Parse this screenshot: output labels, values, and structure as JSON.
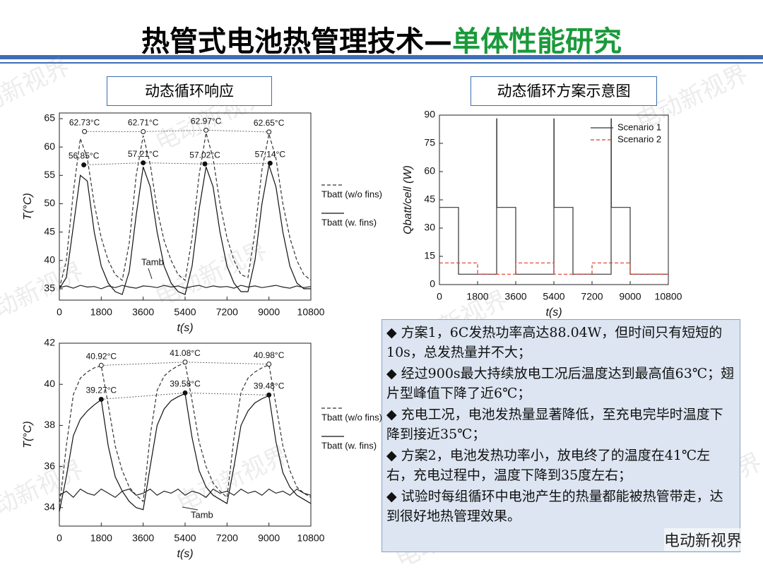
{
  "header": {
    "title": "热管式电池热管理技术—",
    "subtitle": "单体性能研究"
  },
  "labels": {
    "left": "动态循环响应",
    "right": "动态循环方案示意图"
  },
  "watermark": "电动新视界",
  "notes": [
    "◆ 方案1，6C发热功率高达88.04W，但时间只有短短的10s，总发热量并不大；",
    "◆ 经过900s最大持续放电工况后温度达到最高值63℃；翅片型峰值下降了近6℃；",
    "◆ 充电工况，电池发热量显著降低，至充电完毕时温度下降到接近35℃；",
    "◆ 方案2，电池发热功率小，放电终了的温度在41℃左右，充电过程中，温度下降到35度左右；",
    "◆ 试验时每组循环中电池产生的热量都能被热管带走，达到很好地热管理效果。"
  ],
  "chart_data": [
    {
      "type": "line",
      "xlabel": "t(s)",
      "ylabel": "T(°C)",
      "xlim": [
        0,
        10800
      ],
      "xticks": [
        0,
        1800,
        3600,
        5400,
        7200,
        9000,
        10800
      ],
      "ylim": [
        33,
        66
      ],
      "yticks": [
        35,
        40,
        45,
        50,
        55,
        60,
        65
      ],
      "legend": "right",
      "x": [
        0,
        300,
        600,
        900,
        1200,
        1500,
        1800,
        2100,
        2400,
        2700,
        3000,
        3300,
        3600,
        3900,
        4200,
        4500,
        4800,
        5100,
        5400,
        5700,
        6000,
        6300,
        6600,
        6900,
        7200,
        7500,
        7800,
        8100,
        8400,
        8700,
        9000,
        9300,
        9600,
        9900,
        10200,
        10500,
        10800
      ],
      "series": [
        {
          "name": "Tbatt (w/o fins)",
          "color": "#333333",
          "line_style": "dashed",
          "in_legend": true,
          "values": [
            35,
            40,
            52,
            61.5,
            58,
            50,
            44,
            40,
            37.5,
            36.5,
            43,
            55,
            62,
            57,
            49,
            43.5,
            40,
            37.5,
            36.5,
            44,
            55,
            62.5,
            58,
            50,
            44,
            40,
            37.5,
            37,
            45,
            56,
            62.3,
            58,
            50,
            44,
            40,
            37.5,
            36.5
          ]
        },
        {
          "name": "Tbatt (w. fins)",
          "color": "#111111",
          "line_style": "solid",
          "in_legend": true,
          "values": [
            35,
            37,
            46,
            55,
            54,
            45,
            39,
            36,
            34.5,
            34,
            38,
            48,
            56.5,
            53,
            45,
            39,
            36,
            34.5,
            34,
            39,
            49,
            56.5,
            53,
            45,
            39,
            36,
            34.5,
            34.5,
            40,
            50,
            56.8,
            53,
            45,
            39,
            36,
            35,
            35
          ]
        },
        {
          "name": "Tamb",
          "color": "#222222",
          "line_style": "solid",
          "in_legend": false,
          "values": [
            35.2,
            35.5,
            35.1,
            35.6,
            35.3,
            35.4,
            35.0,
            35.5,
            35.2,
            35.6,
            35.3,
            35.1,
            35.5,
            35.4,
            35.2,
            35.6,
            35.3,
            35.5,
            35.1,
            35.4,
            35.6,
            35.2,
            35.5,
            35.3,
            35.4,
            35.1,
            35.6,
            35.3,
            35.5,
            35.2,
            35.4,
            35.6,
            35.3,
            35.1,
            35.5,
            35.2,
            35.4
          ]
        }
      ],
      "annotations": [
        {
          "text": "62.73°C",
          "x": 1080,
          "y": 62.73,
          "marker": "open"
        },
        {
          "text": "62.71°C",
          "x": 3600,
          "y": 62.71,
          "marker": "open"
        },
        {
          "text": "62.97°C",
          "x": 6300,
          "y": 62.97,
          "marker": "open"
        },
        {
          "text": "62.65°C",
          "x": 9000,
          "y": 62.65,
          "marker": "open"
        },
        {
          "text": "56.85°C",
          "x": 1050,
          "y": 56.85,
          "marker": "filled"
        },
        {
          "text": "57.21°C",
          "x": 3600,
          "y": 57.21,
          "marker": "filled"
        },
        {
          "text": "57.02°C",
          "x": 6250,
          "y": 57.02,
          "marker": "filled"
        },
        {
          "text": "57.14°C",
          "x": 9050,
          "y": 57.14,
          "marker": "filled"
        }
      ]
    },
    {
      "type": "line",
      "xlabel": "t(s)",
      "ylabel": "T(°C)",
      "xlim": [
        0,
        10800
      ],
      "xticks": [
        0,
        1800,
        3600,
        5400,
        7200,
        9000,
        10800
      ],
      "ylim": [
        33.1,
        42
      ],
      "yticks": [
        34,
        36,
        38,
        40,
        42
      ],
      "legend": "right",
      "x": [
        0,
        300,
        600,
        900,
        1200,
        1500,
        1800,
        2100,
        2400,
        2700,
        3000,
        3300,
        3600,
        3900,
        4200,
        4500,
        4800,
        5100,
        5400,
        5700,
        6000,
        6300,
        6600,
        6900,
        7200,
        7500,
        7800,
        8100,
        8400,
        8700,
        9000,
        9300,
        9600,
        9900,
        10200,
        10500,
        10800
      ],
      "series": [
        {
          "name": "Tbatt (w/o fins)",
          "color": "#333333",
          "line_style": "dashed",
          "in_legend": true,
          "values": [
            34,
            37,
            39.5,
            40.3,
            40.6,
            40.8,
            40.9,
            39,
            37,
            35.8,
            35,
            34.6,
            34.3,
            37.5,
            39.7,
            40.4,
            40.7,
            40.9,
            41.05,
            39.2,
            37.2,
            36,
            35.2,
            34.8,
            34.5,
            37.4,
            39.6,
            40.3,
            40.6,
            40.8,
            40.95,
            39,
            37,
            35.8,
            35,
            34.7,
            34.5
          ]
        },
        {
          "name": "Tbatt (w. fins)",
          "color": "#111111",
          "line_style": "solid",
          "in_legend": true,
          "values": [
            33.8,
            35.5,
            37.5,
            38.3,
            38.7,
            39,
            39.25,
            37,
            35.5,
            34.8,
            34.3,
            34,
            33.9,
            36,
            38,
            38.8,
            39.2,
            39.4,
            39.55,
            37.4,
            35.8,
            35,
            34.6,
            34.4,
            34.2,
            36,
            38,
            38.7,
            39.1,
            39.3,
            39.45,
            37.2,
            35.7,
            35,
            34.6,
            34.4,
            34.2
          ]
        },
        {
          "name": "Tamb",
          "color": "#222222",
          "line_style": "solid",
          "in_legend": false,
          "values": [
            34.6,
            34.8,
            34.5,
            34.9,
            34.7,
            34.6,
            34.9,
            34.7,
            34.5,
            34.8,
            34.9,
            34.6,
            34.7,
            34.9,
            34.6,
            34.8,
            34.7,
            34.9,
            34.6,
            34.8,
            34.7,
            34.5,
            34.9,
            34.7,
            34.8,
            34.6,
            34.9,
            34.7,
            34.8,
            34.6,
            34.9,
            34.7,
            34.8,
            34.6,
            34.9,
            34.7,
            34.6
          ]
        }
      ],
      "annotations": [
        {
          "text": "40.92°C",
          "x": 1800,
          "y": 40.92,
          "marker": "open"
        },
        {
          "text": "41.08°C",
          "x": 5400,
          "y": 41.08,
          "marker": "open"
        },
        {
          "text": "40.98°C",
          "x": 9000,
          "y": 40.98,
          "marker": "open"
        },
        {
          "text": "39.27°C",
          "x": 1800,
          "y": 39.27,
          "marker": "filled"
        },
        {
          "text": "39.58°C",
          "x": 5400,
          "y": 39.58,
          "marker": "filled"
        },
        {
          "text": "39.48°C",
          "x": 9000,
          "y": 39.48,
          "marker": "filled"
        }
      ]
    },
    {
      "type": "line",
      "xlabel": "t(s)",
      "ylabel": "Qbatt/cell (W)",
      "xlim": [
        0,
        10800
      ],
      "xticks": [
        0,
        1800,
        3600,
        5400,
        7200,
        9000,
        10800
      ],
      "ylim": [
        0,
        90
      ],
      "yticks": [
        0,
        15,
        30,
        45,
        60,
        75,
        90
      ],
      "legend": "upper right",
      "series": [
        {
          "name": "Scenario 1",
          "color": "#333333",
          "line_style": "solid",
          "in_legend": true,
          "x": [
            0,
            900,
            900,
            2700,
            2700,
            2710,
            2710,
            3600,
            3600,
            5400,
            5400,
            5410,
            5410,
            6300,
            6300,
            8100,
            8100,
            8110,
            8110,
            9000,
            9000,
            10800
          ],
          "values": [
            41,
            41,
            5.5,
            5.5,
            88.04,
            88.04,
            41,
            41,
            5.5,
            5.5,
            88.04,
            88.04,
            41,
            41,
            5.5,
            5.5,
            88.04,
            88.04,
            41,
            41,
            5.5,
            5.5
          ]
        },
        {
          "name": "Scenario 2",
          "color": "#e0392b",
          "line_style": "dashed",
          "in_legend": true,
          "x": [
            0,
            1800,
            1800,
            3600,
            3600,
            5400,
            5400,
            7200,
            7200,
            9000,
            9000,
            10800
          ],
          "values": [
            11.5,
            11.5,
            5.5,
            5.5,
            11.5,
            11.5,
            5.5,
            5.5,
            11.5,
            11.5,
            5.5,
            5.5
          ]
        }
      ]
    }
  ]
}
